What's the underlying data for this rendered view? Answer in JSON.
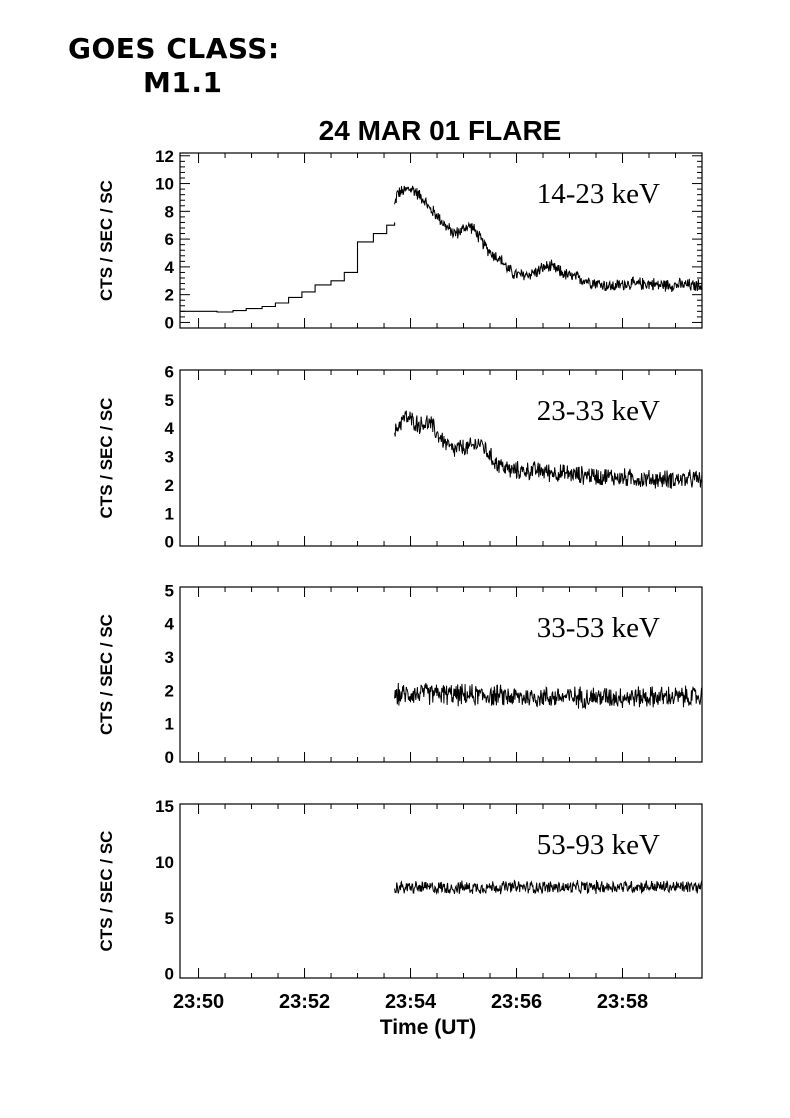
{
  "header": {
    "goes_line1": "GOES CLASS:",
    "goes_line2": "M1.1"
  },
  "chart_data": {
    "type": "line",
    "title": "24 MAR 01 FLARE",
    "xlabel": "Time (UT)",
    "x_unit": "minutes after 23:50 UT",
    "xlim": [
      -0.35,
      9.5
    ],
    "x_tick_labels": [
      "23:50",
      "23:52",
      "23:54",
      "23:56",
      "23:58"
    ],
    "x_tick_values": [
      0,
      2,
      4,
      6,
      8
    ],
    "grid": false,
    "panels": [
      {
        "name": "14-23 keV",
        "ylabel": "CTS / SEC / SC",
        "ylim": [
          -0.4,
          12.2
        ],
        "y_ticks": [
          0,
          2,
          4,
          6,
          8,
          10,
          12
        ],
        "y_tick_labels": [
          "0",
          "2",
          "4",
          "6",
          "8",
          "10",
          "12"
        ],
        "step_series": {
          "x": [
            -0.35,
            0.35,
            0.65,
            0.9,
            1.2,
            1.45,
            1.7,
            1.95,
            2.2,
            2.5,
            2.75,
            3.0,
            3.3,
            3.55,
            3.7
          ],
          "values": [
            0.8,
            0.75,
            0.85,
            1.0,
            1.15,
            1.4,
            1.8,
            2.2,
            2.7,
            3.0,
            3.6,
            5.8,
            6.4,
            7.0,
            7.2
          ]
        },
        "series": {
          "x": [
            3.7,
            3.75,
            3.85,
            3.95,
            4.05,
            4.15,
            4.25,
            4.35,
            4.45,
            4.55,
            4.65,
            4.75,
            4.85,
            4.95,
            5.05,
            5.15,
            5.25,
            5.35,
            5.45,
            5.55,
            5.65,
            5.75,
            5.85,
            5.95,
            6.05,
            6.15,
            6.25,
            6.35,
            6.45,
            6.55,
            6.65,
            6.75,
            6.85,
            6.95,
            7.05,
            7.15,
            7.25,
            7.35,
            7.45,
            7.55,
            7.65,
            7.75,
            7.85,
            7.95,
            8.05,
            8.15,
            8.25,
            8.35,
            8.45,
            8.55,
            8.65,
            8.75,
            8.85,
            8.95,
            9.05,
            9.15,
            9.25,
            9.35,
            9.45,
            9.5
          ],
          "values": [
            8.4,
            9.3,
            9.4,
            9.6,
            9.6,
            9.2,
            8.9,
            8.2,
            7.9,
            7.5,
            7.0,
            6.6,
            6.4,
            6.6,
            6.9,
            6.9,
            6.4,
            5.8,
            5.3,
            4.9,
            4.7,
            4.3,
            3.8,
            3.5,
            3.4,
            3.4,
            3.5,
            3.6,
            3.8,
            4.0,
            4.0,
            3.8,
            3.6,
            3.4,
            3.3,
            3.2,
            3.1,
            3.0,
            2.9,
            2.8,
            2.7,
            2.6,
            2.6,
            2.7,
            2.8,
            2.8,
            2.7,
            2.8,
            2.8,
            2.8,
            2.7,
            2.7,
            2.7,
            2.7,
            2.7,
            2.7,
            2.7,
            2.6,
            2.7,
            2.8
          ],
          "noise_amplitude": 0.8
        }
      },
      {
        "name": "23-33 keV",
        "ylabel": "CTS / SEC / SC",
        "ylim": [
          -0.15,
          6.05
        ],
        "y_ticks": [
          0,
          1,
          2,
          3,
          4,
          5,
          6
        ],
        "y_tick_labels": [
          "0",
          "1",
          "2",
          "3",
          "4",
          "5",
          "6"
        ],
        "series": {
          "x": [
            3.7,
            3.8,
            3.9,
            4.0,
            4.1,
            4.2,
            4.3,
            4.4,
            4.5,
            4.6,
            4.7,
            4.8,
            4.9,
            5.0,
            5.1,
            5.2,
            5.3,
            5.4,
            5.5,
            5.6,
            5.7,
            5.8,
            5.9,
            6.0,
            6.1,
            6.2,
            6.3,
            6.4,
            6.5,
            6.6,
            6.7,
            6.8,
            6.9,
            7.0,
            7.1,
            7.2,
            7.3,
            7.4,
            7.5,
            7.6,
            7.7,
            7.8,
            7.9,
            8.0,
            8.1,
            8.2,
            8.3,
            8.4,
            8.5,
            8.6,
            8.7,
            8.8,
            8.9,
            9.0,
            9.1,
            9.2,
            9.3,
            9.4,
            9.5
          ],
          "values": [
            3.8,
            4.2,
            4.4,
            4.3,
            4.2,
            4.1,
            4.2,
            4.1,
            3.8,
            3.6,
            3.4,
            3.2,
            3.3,
            3.3,
            3.3,
            3.4,
            3.5,
            3.3,
            3.0,
            2.8,
            2.7,
            2.6,
            2.5,
            2.5,
            2.5,
            2.5,
            2.5,
            2.5,
            2.5,
            2.45,
            2.45,
            2.4,
            2.4,
            2.4,
            2.35,
            2.35,
            2.35,
            2.35,
            2.3,
            2.3,
            2.3,
            2.3,
            2.25,
            2.25,
            2.25,
            2.25,
            2.2,
            2.2,
            2.2,
            2.2,
            2.2,
            2.2,
            2.2,
            2.2,
            2.2,
            2.2,
            2.2,
            2.2,
            2.2
          ],
          "noise_amplitude": 0.55
        }
      },
      {
        "name": "33-53 keV",
        "ylabel": "CTS / SEC / SC",
        "ylim": [
          -0.15,
          5.1
        ],
        "y_ticks": [
          0,
          1,
          2,
          3,
          4,
          5
        ],
        "y_tick_labels": [
          "0",
          "1",
          "2",
          "3",
          "4",
          "5"
        ],
        "series": {
          "x": [
            3.7,
            4.0,
            4.5,
            5.0,
            5.5,
            6.0,
            6.5,
            7.0,
            7.5,
            8.0,
            8.5,
            9.0,
            9.5
          ],
          "values": [
            1.85,
            1.9,
            1.9,
            1.85,
            1.85,
            1.8,
            1.8,
            1.8,
            1.8,
            1.8,
            1.8,
            1.8,
            1.8
          ],
          "noise_amplitude": 0.55
        }
      },
      {
        "name": "53-93 keV",
        "ylabel": "CTS / SEC / SC",
        "ylim": [
          -0.4,
          15.2
        ],
        "y_ticks": [
          0,
          5,
          10,
          15
        ],
        "y_tick_labels": [
          "0",
          "5",
          "10",
          "15"
        ],
        "series": {
          "x": [
            3.7,
            4.0,
            4.5,
            5.0,
            5.5,
            6.0,
            6.5,
            7.0,
            7.5,
            8.0,
            8.5,
            9.0,
            9.5
          ],
          "values": [
            7.7,
            7.7,
            7.7,
            7.7,
            7.75,
            7.75,
            7.75,
            7.7,
            7.75,
            7.8,
            7.8,
            7.75,
            7.75
          ],
          "noise_amplitude": 1.0
        }
      }
    ]
  }
}
